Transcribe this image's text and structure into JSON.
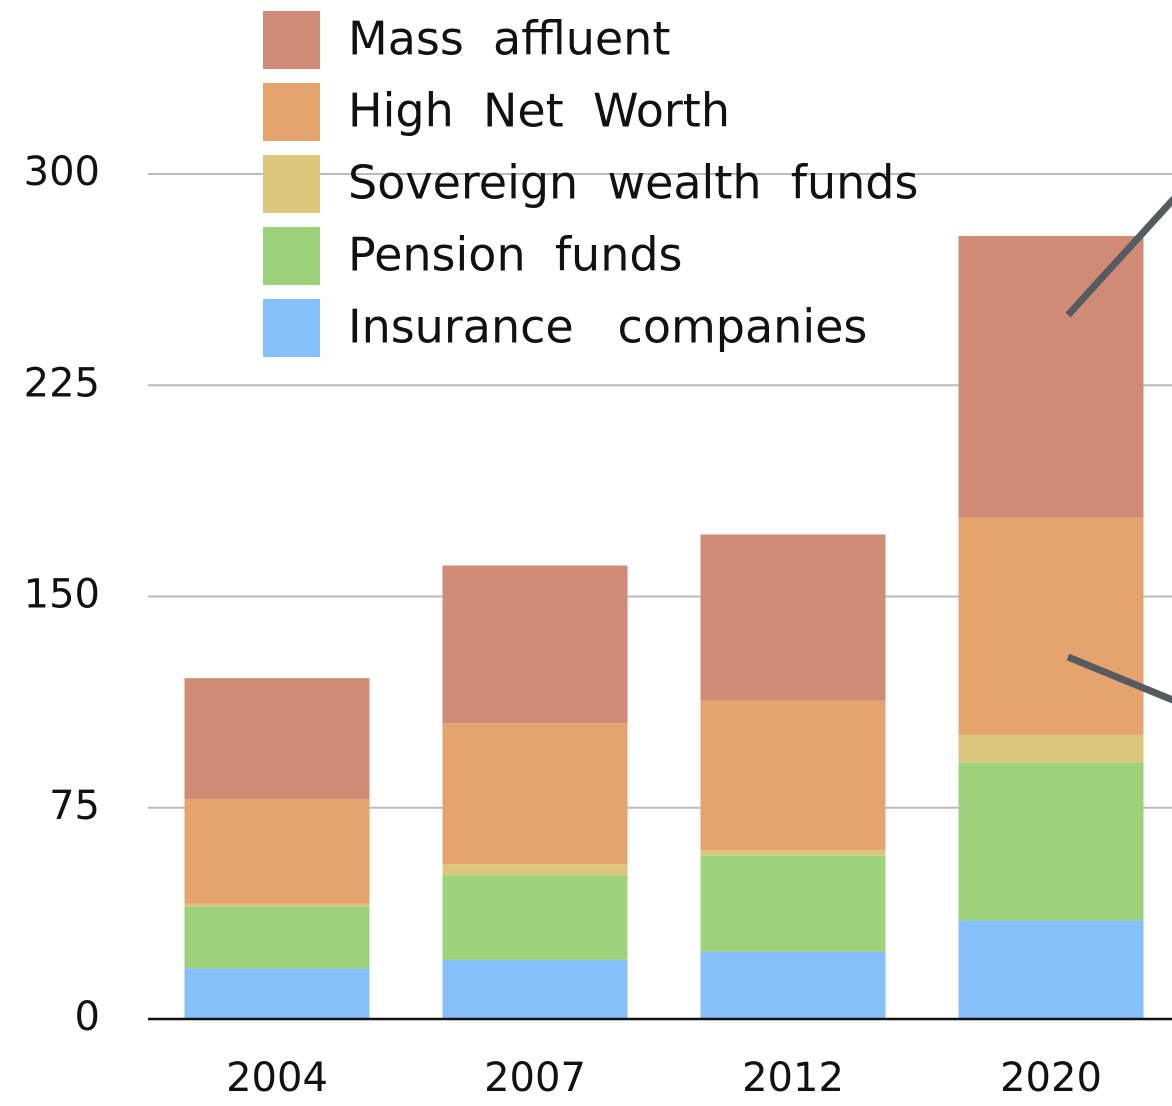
{
  "chart_data": {
    "type": "stacked_bar",
    "categories": [
      "2004",
      "2007",
      "2012",
      "2020"
    ],
    "series": [
      {
        "name": "Insurance   companies",
        "color": "#85c1f8",
        "values": [
          18,
          21,
          24,
          35
        ]
      },
      {
        "name": "Pension  funds",
        "color": "#9dd27a",
        "values": [
          22,
          30,
          34,
          56
        ]
      },
      {
        "name": "Sovereign  wealth  funds",
        "color": "#dcc67e",
        "values": [
          1,
          4,
          2,
          10
        ]
      },
      {
        "name": "High  Net  Worth",
        "color": "#e5a46e",
        "values": [
          37,
          50,
          53,
          77
        ]
      },
      {
        "name": "Mass  affluent",
        "color": "#d08b76",
        "values": [
          43,
          56,
          59,
          100
        ]
      }
    ],
    "ylim": [
      0,
      300
    ],
    "yticks": [
      0,
      75,
      150,
      225,
      300
    ],
    "grid": true,
    "legend": "upper left"
  }
}
